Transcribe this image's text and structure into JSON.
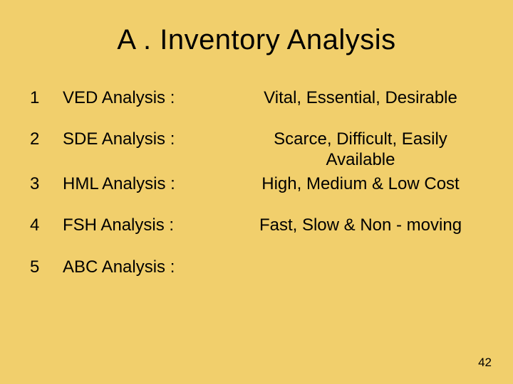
{
  "background_color": "#f1cf6c",
  "text_color": "#000000",
  "title": "A .   Inventory Analysis",
  "title_fontsize": 40,
  "body_fontsize": 24,
  "rows": [
    {
      "num": "1",
      "name": "VED Analysis :",
      "desc": "Vital, Essential, Desirable"
    },
    {
      "num": "2",
      "name": "SDE Analysis :",
      "desc": "Scarce, Difficult, Easily Available"
    },
    {
      "num": "3",
      "name": "HML Analysis :",
      "desc": "High, Medium & Low Cost"
    },
    {
      "num": "4",
      "name": "FSH Analysis :",
      "desc": "Fast, Slow & Non - moving"
    },
    {
      "num": "5",
      "name": "ABC Analysis :",
      "desc": ""
    }
  ],
  "page_number": "42"
}
